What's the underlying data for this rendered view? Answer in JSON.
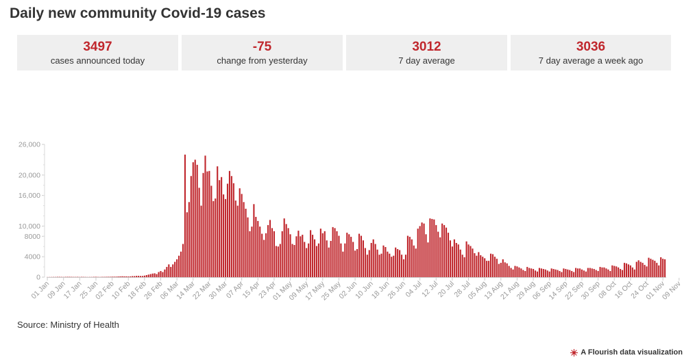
{
  "title": "Daily new community Covid-19 cases",
  "stats": [
    {
      "value": "3497",
      "label": "cases announced today"
    },
    {
      "value": "-75",
      "label": "change from yesterday"
    },
    {
      "value": "3012",
      "label": "7 day average"
    },
    {
      "value": "3036",
      "label": "7 day average a week ago"
    }
  ],
  "source": "Source: Ministry of Health",
  "credit": "A Flourish data visualization",
  "colors": {
    "bar": "#c0272d",
    "accent": "#c0272d"
  },
  "chart_data": {
    "type": "bar",
    "x_start": "01 Jan",
    "x_tick_labels": [
      "01 Jan",
      "09 Jan",
      "17 Jan",
      "25 Jan",
      "02 Feb",
      "10 Feb",
      "18 Feb",
      "26 Feb",
      "06 Mar",
      "14 Mar",
      "22 Mar",
      "30 Mar",
      "07 Apr",
      "15 Apr",
      "23 Apr",
      "01 May",
      "09 May",
      "17 May",
      "25 May",
      "02 Jun",
      "10 Jun",
      "18 Jun",
      "26 Jun",
      "04 Jul",
      "12 Jul",
      "20 Jul",
      "28 Jul",
      "05 Aug",
      "13 Aug",
      "21 Aug",
      "29 Aug",
      "06 Sep",
      "14 Sep",
      "22 Sep",
      "30 Sep",
      "08 Oct",
      "16 Oct",
      "24 Oct",
      "01 Nov",
      "09 Nov"
    ],
    "y_ticks": [
      0,
      4000,
      8000,
      10000,
      16000,
      20000,
      26000
    ],
    "y_tick_labels": [
      "0",
      "4000",
      "8000",
      "10,000",
      "16,000",
      "20,000",
      "26,000"
    ],
    "ylim": [
      0,
      26000
    ],
    "values": [
      20,
      25,
      30,
      40,
      40,
      60,
      60,
      50,
      40,
      60,
      70,
      70,
      60,
      50,
      50,
      60,
      40,
      60,
      50,
      40,
      30,
      40,
      40,
      60,
      70,
      50,
      40,
      60,
      60,
      70,
      80,
      80,
      100,
      100,
      100,
      130,
      150,
      170,
      150,
      150,
      130,
      150,
      200,
      200,
      250,
      250,
      230,
      230,
      300,
      400,
      500,
      600,
      700,
      750,
      600,
      1000,
      1200,
      1000,
      1500,
      2000,
      2500,
      2000,
      2500,
      3000,
      3500,
      4200,
      5000,
      6500,
      24000,
      12700,
      14700,
      19800,
      22500,
      23000,
      22000,
      17500,
      14000,
      20400,
      23800,
      20700,
      20800,
      17900,
      14900,
      15400,
      21700,
      19000,
      19600,
      16200,
      15300,
      18300,
      20800,
      19800,
      18400,
      15000,
      14000,
      17400,
      16300,
      14700,
      13400,
      11700,
      9000,
      9900,
      14300,
      11800,
      11000,
      9900,
      8500,
      7300,
      8600,
      10200,
      11200,
      9600,
      9000,
      6100,
      6000,
      6500,
      9000,
      11500,
      10400,
      9600,
      8400,
      6500,
      6300,
      8000,
      9100,
      8000,
      8300,
      6900,
      5700,
      6600,
      9200,
      8300,
      7400,
      6100,
      6600,
      9500,
      8600,
      9000,
      7200,
      5800,
      7100,
      9800,
      9600,
      9000,
      8100,
      6600,
      5000,
      6600,
      8700,
      8400,
      7900,
      6900,
      5200,
      5500,
      8500,
      8100,
      7200,
      5700,
      4400,
      5300,
      6700,
      7400,
      6500,
      5400,
      4400,
      4600,
      6200,
      5900,
      5000,
      4600,
      4000,
      4200,
      5800,
      5500,
      5300,
      4400,
      3500,
      4400,
      8100,
      7900,
      7400,
      6200,
      5600,
      9500,
      10000,
      10700,
      10500,
      8400,
      6800,
      11500,
      11400,
      11300,
      10200,
      8900,
      7800,
      10500,
      10200,
      9700,
      8700,
      7200,
      6000,
      7400,
      6700,
      6400,
      5400,
      4400,
      3900,
      7000,
      6400,
      6100,
      5600,
      4700,
      4200,
      4900,
      4300,
      4000,
      3700,
      3200,
      3200,
      4600,
      4500,
      4000,
      3600,
      2600,
      2800,
      3500,
      2900,
      2700,
      2200,
      1800,
      1500,
      2200,
      2100,
      1900,
      1700,
      1400,
      1200,
      2000,
      1800,
      1700,
      1600,
      1300,
      1100,
      1800,
      1700,
      1600,
      1500,
      1300,
      1100,
      1700,
      1600,
      1500,
      1400,
      1200,
      1000,
      1700,
      1600,
      1500,
      1400,
      1200,
      1000,
      1800,
      1700,
      1700,
      1500,
      1300,
      1100,
      1800,
      1800,
      1700,
      1600,
      1400,
      1200,
      2000,
      1900,
      1900,
      1700,
      1500,
      1200,
      2300,
      2200,
      2100,
      1900,
      1600,
      1400,
      2800,
      2700,
      2500,
      2300,
      1900,
      1500,
      3000,
      3300,
      3000,
      2800,
      2400,
      2100,
      3800,
      3600,
      3400,
      3200,
      2800,
      2300,
      3900,
      3600,
      3500
    ]
  }
}
